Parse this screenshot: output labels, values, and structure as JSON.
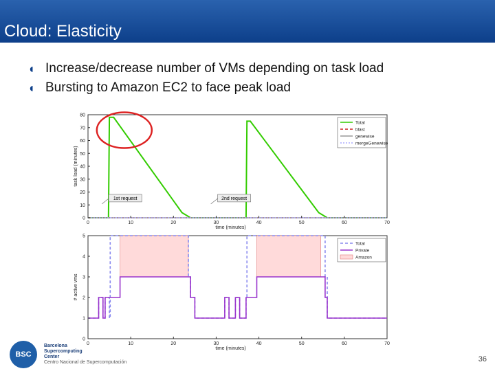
{
  "title": "Cloud: Elasticity",
  "bullets": [
    "Increase/decrease number of VMs depending on task load",
    "Bursting to Amazon EC2 to face peak load"
  ],
  "bullet_glyph": "◖",
  "logo": {
    "mark": "BSC",
    "lines": [
      "Barcelona",
      "Supercomputing",
      "Center",
      "Centro Nacional de Supercomputación"
    ]
  },
  "page_number": "36",
  "colors": {
    "title_bar": "#1a4f9a",
    "total_line": "#33cc00",
    "blast": "#cc2222",
    "private": "#9933cc",
    "amazon_fill": "#ffdada",
    "highlight_circle": "#dd2222"
  },
  "chart_data": [
    {
      "type": "line",
      "xlabel": "time (minutes)",
      "ylabel": "task load (minutes)",
      "xlim": [
        0,
        70
      ],
      "ylim": [
        0,
        80
      ],
      "xticks": [
        0,
        10,
        20,
        30,
        40,
        50,
        60,
        70
      ],
      "yticks": [
        0,
        10,
        20,
        30,
        40,
        50,
        60,
        70,
        80
      ],
      "grid": false,
      "legend_position": "top-right",
      "series": [
        {
          "name": "Total",
          "color": "#33cc00",
          "dash": "",
          "x": [
            0,
            4.8,
            5,
            6,
            22,
            24,
            25,
            37,
            37.2,
            38,
            54,
            56,
            70
          ],
          "y": [
            0,
            0,
            78,
            78,
            4,
            0,
            0,
            0,
            75,
            75,
            4,
            0,
            0
          ]
        },
        {
          "name": "blast",
          "color": "#cc2222",
          "dash": "4,3",
          "x": [
            0,
            70
          ],
          "y": [
            0,
            0
          ]
        },
        {
          "name": "genewise",
          "color": "#999999",
          "dash": "",
          "x": [
            0,
            70
          ],
          "y": [
            0,
            0
          ]
        },
        {
          "name": "mergeGenewise",
          "color": "#aaaaff",
          "dash": "2,2",
          "x": [
            0,
            70
          ],
          "y": [
            0,
            0
          ]
        }
      ],
      "annotations": [
        {
          "text": "1st request",
          "x": 5.5,
          "y": 15
        },
        {
          "text": "2nd request",
          "x": 31,
          "y": 15
        }
      ]
    },
    {
      "type": "area",
      "xlabel": "time (minutes)",
      "ylabel": "# active vms",
      "xlim": [
        0,
        70
      ],
      "ylim": [
        0,
        5
      ],
      "xticks": [
        0,
        10,
        20,
        30,
        40,
        50,
        60,
        70
      ],
      "yticks": [
        0,
        1,
        2,
        3,
        4,
        5
      ],
      "grid": false,
      "legend_position": "top-right",
      "series": [
        {
          "name": "Total",
          "color": "#8888ee",
          "dash": "4,3",
          "x": [
            0,
            2.5,
            2.5,
            3.5,
            3.5,
            4,
            4,
            5,
            5,
            5.2,
            5.2,
            23.5,
            23.5,
            24,
            24,
            25,
            25,
            32,
            32,
            33,
            33,
            34.5,
            34.5,
            35.5,
            35.5,
            37,
            37,
            37.2,
            37.2,
            55.5,
            55.5,
            56,
            56,
            70
          ],
          "y": [
            1,
            1,
            2,
            2,
            1,
            1,
            2,
            2,
            1,
            1,
            5,
            5,
            3,
            3,
            2,
            2,
            1,
            1,
            2,
            2,
            1,
            1,
            2,
            2,
            1,
            1,
            2,
            2,
            5,
            5,
            3,
            3,
            1,
            1
          ]
        },
        {
          "name": "Private",
          "color": "#9933cc",
          "dash": "",
          "x": [
            0,
            2.5,
            2.5,
            3.5,
            3.5,
            4,
            4,
            5,
            5,
            7.5,
            7.5,
            24,
            24,
            25,
            25,
            32,
            32,
            33,
            33,
            34.5,
            34.5,
            35.5,
            35.5,
            37,
            37,
            39.5,
            39.5,
            55.5,
            55.5,
            56,
            56,
            70
          ],
          "y": [
            1,
            1,
            2,
            2,
            1,
            1,
            2,
            2,
            2,
            2,
            3,
            3,
            2,
            2,
            1,
            1,
            2,
            2,
            1,
            1,
            2,
            2,
            1,
            1,
            2,
            2,
            3,
            3,
            2,
            2,
            1,
            1
          ]
        },
        {
          "name": "Amazon",
          "color": "#ffdada",
          "fill": true,
          "ranges": [
            {
              "x": [
                7.5,
                23.5
              ],
              "y0": 3,
              "y1": 5
            },
            {
              "x": [
                39.5,
                54.5
              ],
              "y0": 3,
              "y1": 5
            }
          ]
        }
      ]
    }
  ]
}
